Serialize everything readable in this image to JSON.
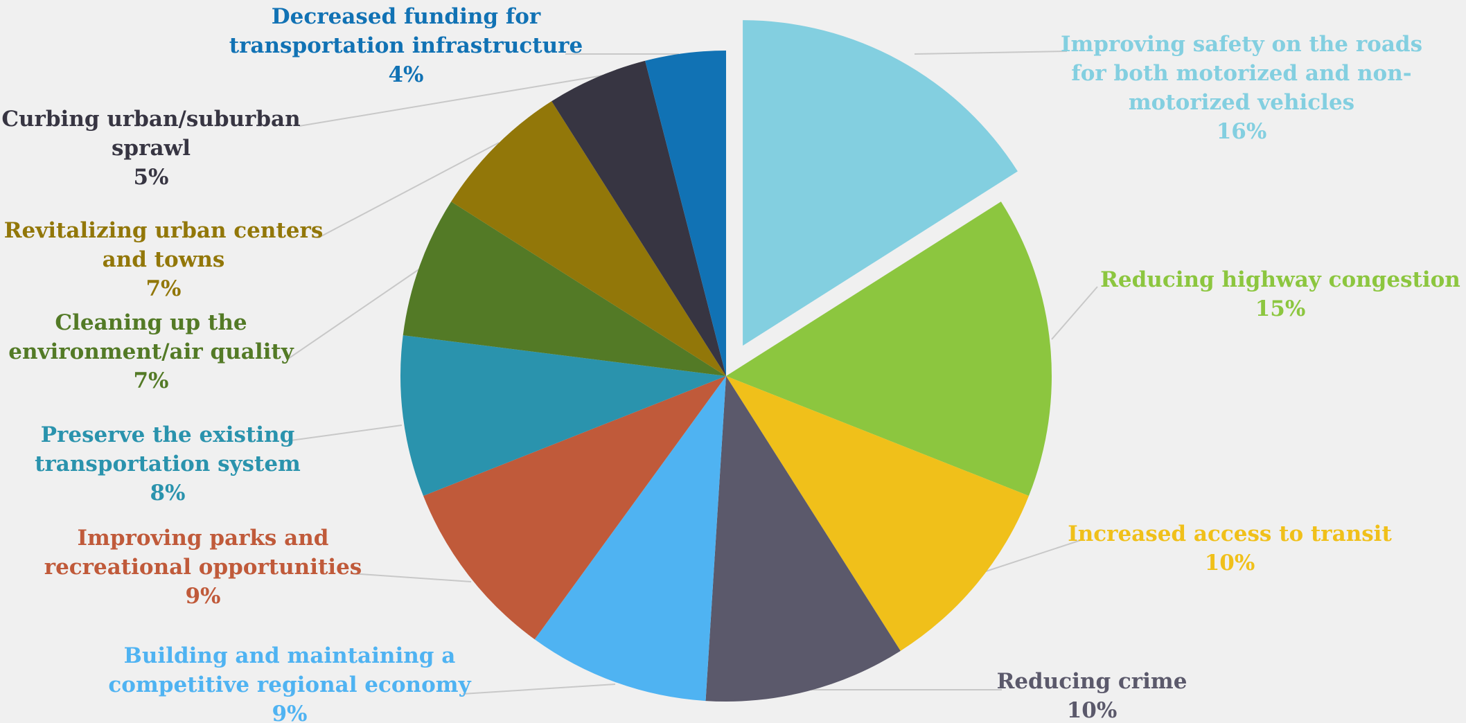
{
  "chart_data": {
    "type": "pie",
    "title": "",
    "exploded": "Improving safety on the roads for both motorized and non-motorized vehicles",
    "slices": [
      {
        "label_lines": [
          "Improving safety on the roads",
          "for both motorized and non-",
          "motorized vehicles"
        ],
        "value": 16,
        "pct_text": "16%",
        "color": "#83cfe0"
      },
      {
        "label_lines": [
          "Reducing highway congestion"
        ],
        "value": 15,
        "pct_text": "15%",
        "color": "#8cc63f"
      },
      {
        "label_lines": [
          "Increased access to transit"
        ],
        "value": 10,
        "pct_text": "10%",
        "color": "#f0c01a"
      },
      {
        "label_lines": [
          "Reducing crime"
        ],
        "value": 10,
        "pct_text": "10%",
        "color": "#5b596b"
      },
      {
        "label_lines": [
          "Building and maintaining a",
          "competitive regional economy"
        ],
        "value": 9,
        "pct_text": "9%",
        "color": "#4fb3f2"
      },
      {
        "label_lines": [
          "Improving parks and",
          "recreational opportunities"
        ],
        "value": 9,
        "pct_text": "9%",
        "color": "#c05a3a"
      },
      {
        "label_lines": [
          "Preserve the existing",
          "transportation system"
        ],
        "value": 8,
        "pct_text": "8%",
        "color": "#2a93ad"
      },
      {
        "label_lines": [
          "Cleaning up the",
          "environment/air quality"
        ],
        "value": 7,
        "pct_text": "7%",
        "color": "#537a26"
      },
      {
        "label_lines": [
          "Revitalizing urban centers",
          "and towns"
        ],
        "value": 7,
        "pct_text": "7%",
        "color": "#927709"
      },
      {
        "label_lines": [
          "Curbing urban/suburban",
          "sprawl"
        ],
        "value": 5,
        "pct_text": "5%",
        "color": "#373542"
      },
      {
        "label_lines": [
          "Decreased funding for",
          "transportation infrastructure"
        ],
        "value": 4,
        "pct_text": "4%",
        "color": "#1172b4"
      }
    ]
  }
}
